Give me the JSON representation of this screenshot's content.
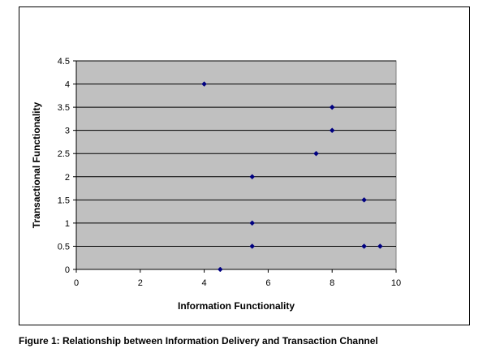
{
  "figure": {
    "caption": "Figure 1: Relationship between Information Delivery and Transaction Channel"
  },
  "chart_data": {
    "type": "scatter",
    "title": "",
    "xlabel": "Information Functionality",
    "ylabel": "Transactional Functionality",
    "xlim": [
      0,
      10
    ],
    "ylim": [
      0,
      4.5
    ],
    "x_ticks": [
      0,
      2,
      4,
      6,
      8,
      10
    ],
    "y_ticks": [
      0,
      0.5,
      1,
      1.5,
      2,
      2.5,
      3,
      3.5,
      4,
      4.5
    ],
    "x_tick_labels": [
      "0",
      "2",
      "4",
      "6",
      "8",
      "10"
    ],
    "y_tick_labels": [
      "0",
      "0.5",
      "1",
      "1.5",
      "2",
      "2.5",
      "3",
      "3.5",
      "4",
      "4.5"
    ],
    "grid": "horizontal",
    "legend": "none",
    "plot_background": "#c0c0c0",
    "marker_color": "#000080",
    "points": [
      {
        "x": 4,
        "y": 4
      },
      {
        "x": 8,
        "y": 3.5
      },
      {
        "x": 8,
        "y": 3
      },
      {
        "x": 7.5,
        "y": 2.5
      },
      {
        "x": 5.5,
        "y": 2
      },
      {
        "x": 9,
        "y": 1.5
      },
      {
        "x": 5.5,
        "y": 1
      },
      {
        "x": 5.5,
        "y": 0.5
      },
      {
        "x": 9,
        "y": 0.5
      },
      {
        "x": 9.5,
        "y": 0.5
      },
      {
        "x": 4.5,
        "y": 0
      }
    ]
  }
}
